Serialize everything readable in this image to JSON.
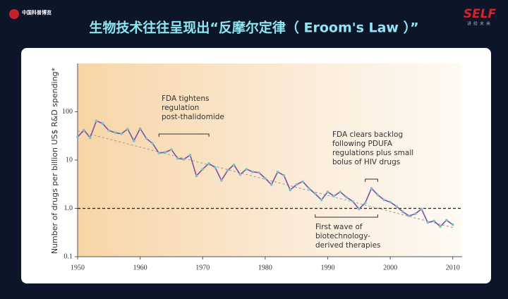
{
  "header": {
    "left_logo": "中国科普博览",
    "right_logo": "SELF",
    "right_tagline": "讲给未来"
  },
  "chart_data": {
    "type": "line",
    "title": "生物技术往往呈现出“反摩尔定律（ Eroom's Law ）”",
    "y_label": "Number of drugs per billion US$ R&D spending*",
    "log_y": true,
    "x": [
      1950,
      1951,
      1952,
      1953,
      1954,
      1955,
      1956,
      1957,
      1958,
      1959,
      1960,
      1961,
      1962,
      1963,
      1964,
      1965,
      1966,
      1967,
      1968,
      1969,
      1970,
      1971,
      1972,
      1973,
      1974,
      1975,
      1976,
      1977,
      1978,
      1979,
      1980,
      1981,
      1982,
      1983,
      1984,
      1985,
      1986,
      1987,
      1988,
      1989,
      1990,
      1991,
      1992,
      1993,
      1994,
      1995,
      1996,
      1997,
      1998,
      1999,
      2000,
      2001,
      2002,
      2003,
      2004,
      2005,
      2006,
      2007,
      2008,
      2009,
      2010
    ],
    "series": [
      {
        "color": "#7a4fa6",
        "marker_color": "#74c4c8",
        "values": [
          30,
          42,
          29,
          65,
          57,
          41,
          37,
          35,
          44,
          25,
          45,
          28,
          22,
          14,
          14.5,
          16.5,
          10.8,
          10.4,
          12.7,
          4.7,
          6.5,
          8.5,
          7,
          3.8,
          6.1,
          8,
          5,
          6.5,
          5.7,
          5.5,
          4.2,
          3.1,
          5.7,
          4.8,
          2.4,
          3.1,
          3.6,
          2.6,
          2.0,
          1.5,
          2.2,
          1.8,
          2.2,
          1.7,
          1.4,
          0.97,
          1.3,
          2.6,
          1.9,
          1.5,
          1.35,
          1.1,
          0.85,
          0.7,
          0.77,
          0.97,
          0.51,
          0.55,
          0.42,
          0.57,
          0.46
        ]
      }
    ],
    "trend": {
      "x": [
        1950,
        2010
      ],
      "values": [
        40,
        0.4
      ]
    },
    "reference_line": 1,
    "xlim": [
      1950,
      2011.5
    ],
    "ylim": [
      0.1,
      1000
    ],
    "xticks": [
      1950,
      1960,
      1970,
      1980,
      1990,
      2000,
      2010
    ],
    "yticks": [
      0.1,
      {
        "value": 1,
        "label": "1.0"
      },
      10,
      100
    ],
    "annotations": [
      {
        "lines": [
          "FDA tightens",
          "regulation",
          "post-thalidomide"
        ]
      },
      {
        "lines": [
          "FDA clears backlog",
          "following PDUFA",
          "regulations plus small",
          "bolus of HIV drugs"
        ]
      },
      {
        "lines": [
          "First wave of",
          "biotechnology-",
          "derived therapies"
        ]
      }
    ]
  }
}
